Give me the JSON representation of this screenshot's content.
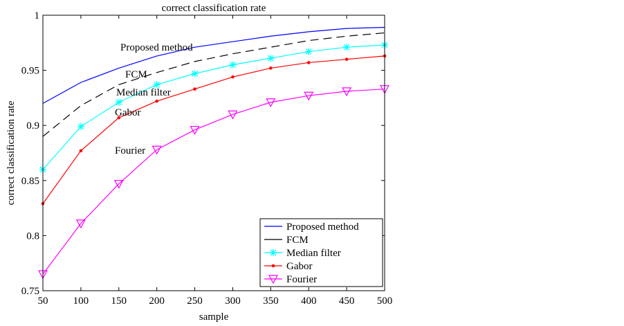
{
  "chart_data": {
    "type": "line",
    "title": "correct classification rate",
    "xlabel": "sample",
    "ylabel": "correct classification rate",
    "x": [
      50,
      100,
      150,
      200,
      250,
      300,
      350,
      400,
      450,
      500
    ],
    "xlim": [
      50,
      500
    ],
    "ylim": [
      0.75,
      1
    ],
    "xticks": [
      "50",
      "100",
      "150",
      "200",
      "250",
      "300",
      "350",
      "400",
      "450",
      "500"
    ],
    "yticks": [
      "0.75",
      "0.8",
      "0.85",
      "0.9",
      "0.95",
      "1"
    ],
    "ytick_values": [
      0.75,
      0.8,
      0.85,
      0.9,
      0.95,
      1
    ],
    "grid": false,
    "legend_position": "bottom-right",
    "series": [
      {
        "name": "Proposed method",
        "color": "#0000ff",
        "dash": false,
        "marker": "none",
        "values": [
          0.92,
          0.939,
          0.952,
          0.963,
          0.971,
          0.976,
          0.981,
          0.985,
          0.988,
          0.989
        ]
      },
      {
        "name": "FCM",
        "color": "#000000",
        "dash": true,
        "marker": "none",
        "values": [
          0.89,
          0.918,
          0.937,
          0.948,
          0.958,
          0.965,
          0.971,
          0.977,
          0.981,
          0.984
        ]
      },
      {
        "name": "Median filter",
        "color": "#00ffff",
        "dash": false,
        "marker": "star",
        "values": [
          0.86,
          0.899,
          0.921,
          0.937,
          0.947,
          0.955,
          0.961,
          0.967,
          0.971,
          0.973
        ]
      },
      {
        "name": "Gabor",
        "color": "#ff0000",
        "dash": false,
        "marker": "dot",
        "values": [
          0.829,
          0.877,
          0.907,
          0.922,
          0.933,
          0.944,
          0.952,
          0.957,
          0.96,
          0.963
        ]
      },
      {
        "name": "Fourier",
        "color": "#ff00ff",
        "dash": false,
        "marker": "triangle-down",
        "values": [
          0.765,
          0.811,
          0.847,
          0.878,
          0.896,
          0.91,
          0.921,
          0.927,
          0.931,
          0.933
        ]
      }
    ],
    "annotations": [
      "Proposed method",
      "FCM",
      "Median filter",
      "Gabor",
      "Fourier"
    ]
  }
}
